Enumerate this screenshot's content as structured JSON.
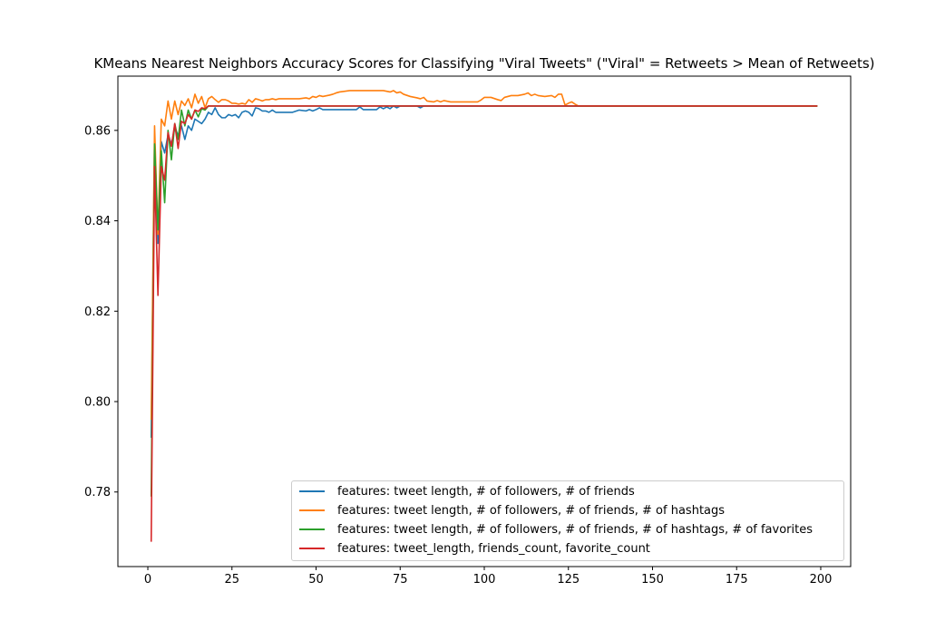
{
  "chart_data": {
    "type": "line",
    "title": "KMeans Nearest Neighbors Accuracy Scores for Classifying \"Viral Tweets\" (\"Viral\" = Retweets > Mean of Retweets)",
    "xlabel": "",
    "ylabel": "",
    "xlim": [
      -8.9,
      208.9
    ],
    "ylim": [
      0.7635,
      0.872
    ],
    "xticks": [
      0,
      25,
      50,
      75,
      100,
      125,
      150,
      175,
      200
    ],
    "yticks": [
      0.78,
      0.8,
      0.82,
      0.84,
      0.86
    ],
    "ytick_labels": [
      "0.78",
      "0.80",
      "0.82",
      "0.84",
      "0.86"
    ],
    "grid": false,
    "legend_position": "lower right",
    "series": [
      {
        "name": "features: tweet length, # of followers, # of friends",
        "color": "#1f77b4",
        "points": [
          [
            1,
            0.792
          ],
          [
            2,
            0.8585
          ],
          [
            3,
            0.835
          ],
          [
            4,
            0.8575
          ],
          [
            5,
            0.855
          ],
          [
            6,
            0.859
          ],
          [
            7,
            0.857
          ],
          [
            8,
            0.8605
          ],
          [
            9,
            0.859
          ],
          [
            10,
            0.861
          ],
          [
            11,
            0.858
          ],
          [
            12,
            0.861
          ],
          [
            13,
            0.86
          ],
          [
            14,
            0.8625
          ],
          [
            15,
            0.862
          ],
          [
            16,
            0.8615
          ],
          [
            17,
            0.8625
          ],
          [
            18,
            0.864
          ],
          [
            19,
            0.8635
          ],
          [
            20,
            0.865
          ],
          [
            21,
            0.8635
          ],
          [
            22,
            0.8628
          ],
          [
            23,
            0.8628
          ],
          [
            24,
            0.8635
          ],
          [
            25,
            0.8632
          ],
          [
            26,
            0.8635
          ],
          [
            27,
            0.8628
          ],
          [
            28,
            0.864
          ],
          [
            29,
            0.8643
          ],
          [
            30,
            0.864
          ],
          [
            31,
            0.8632
          ],
          [
            32,
            0.865
          ],
          [
            33,
            0.8648
          ],
          [
            34,
            0.8643
          ],
          [
            35,
            0.8643
          ],
          [
            36,
            0.864
          ],
          [
            37,
            0.8645
          ],
          [
            38,
            0.864
          ],
          [
            40,
            0.864
          ],
          [
            43,
            0.864
          ],
          [
            45,
            0.8645
          ],
          [
            47,
            0.8643
          ],
          [
            48,
            0.8646
          ],
          [
            49,
            0.8643
          ],
          [
            50,
            0.8646
          ],
          [
            51,
            0.865
          ],
          [
            52,
            0.8646
          ],
          [
            55,
            0.8646
          ],
          [
            60,
            0.8646
          ],
          [
            62,
            0.8646
          ],
          [
            63,
            0.8652
          ],
          [
            64,
            0.8646
          ],
          [
            68,
            0.8646
          ],
          [
            69,
            0.8652
          ],
          [
            70,
            0.8648
          ],
          [
            71,
            0.8652
          ],
          [
            72,
            0.8648
          ],
          [
            73,
            0.8654
          ],
          [
            74,
            0.865
          ],
          [
            75,
            0.8654
          ],
          [
            80,
            0.8654
          ],
          [
            81,
            0.865
          ],
          [
            82,
            0.8654
          ],
          [
            199,
            0.8654
          ]
        ]
      },
      {
        "name": "features: tweet length, # of followers, # of friends, # of hashtags",
        "color": "#ff7f0e",
        "points": [
          [
            1,
            0.796
          ],
          [
            2,
            0.861
          ],
          [
            3,
            0.837
          ],
          [
            4,
            0.8625
          ],
          [
            5,
            0.861
          ],
          [
            6,
            0.8665
          ],
          [
            7,
            0.8625
          ],
          [
            8,
            0.8665
          ],
          [
            9,
            0.8635
          ],
          [
            10,
            0.8665
          ],
          [
            11,
            0.8655
          ],
          [
            12,
            0.867
          ],
          [
            13,
            0.865
          ],
          [
            14,
            0.868
          ],
          [
            15,
            0.866
          ],
          [
            16,
            0.8675
          ],
          [
            17,
            0.865
          ],
          [
            18,
            0.867
          ],
          [
            19,
            0.8675
          ],
          [
            20,
            0.8668
          ],
          [
            21,
            0.8662
          ],
          [
            22,
            0.8668
          ],
          [
            23,
            0.8668
          ],
          [
            24,
            0.8665
          ],
          [
            25,
            0.866
          ],
          [
            26,
            0.866
          ],
          [
            27,
            0.8658
          ],
          [
            28,
            0.866
          ],
          [
            29,
            0.8658
          ],
          [
            30,
            0.8668
          ],
          [
            31,
            0.8662
          ],
          [
            32,
            0.867
          ],
          [
            33,
            0.8668
          ],
          [
            34,
            0.8665
          ],
          [
            35,
            0.8668
          ],
          [
            36,
            0.8668
          ],
          [
            37,
            0.867
          ],
          [
            38,
            0.8668
          ],
          [
            39,
            0.867
          ],
          [
            40,
            0.867
          ],
          [
            45,
            0.867
          ],
          [
            47,
            0.8672
          ],
          [
            48,
            0.867
          ],
          [
            49,
            0.8675
          ],
          [
            50,
            0.8673
          ],
          [
            51,
            0.8677
          ],
          [
            52,
            0.8675
          ],
          [
            54,
            0.8678
          ],
          [
            55,
            0.868
          ],
          [
            56,
            0.8683
          ],
          [
            57,
            0.8685
          ],
          [
            60,
            0.8688
          ],
          [
            65,
            0.8688
          ],
          [
            70,
            0.8688
          ],
          [
            72,
            0.8685
          ],
          [
            73,
            0.8688
          ],
          [
            74,
            0.8683
          ],
          [
            75,
            0.8685
          ],
          [
            76,
            0.868
          ],
          [
            78,
            0.8675
          ],
          [
            80,
            0.8672
          ],
          [
            81,
            0.867
          ],
          [
            82,
            0.8673
          ],
          [
            83,
            0.8665
          ],
          [
            85,
            0.8663
          ],
          [
            86,
            0.8666
          ],
          [
            87,
            0.8663
          ],
          [
            88,
            0.8666
          ],
          [
            90,
            0.8663
          ],
          [
            95,
            0.8663
          ],
          [
            98,
            0.8663
          ],
          [
            99,
            0.8667
          ],
          [
            100,
            0.8673
          ],
          [
            102,
            0.8673
          ],
          [
            104,
            0.8668
          ],
          [
            105,
            0.8666
          ],
          [
            106,
            0.8673
          ],
          [
            108,
            0.8677
          ],
          [
            110,
            0.8677
          ],
          [
            112,
            0.868
          ],
          [
            113,
            0.8683
          ],
          [
            114,
            0.8677
          ],
          [
            115,
            0.868
          ],
          [
            116,
            0.8677
          ],
          [
            118,
            0.8675
          ],
          [
            120,
            0.8677
          ],
          [
            121,
            0.8673
          ],
          [
            122,
            0.868
          ],
          [
            123,
            0.868
          ],
          [
            124,
            0.8656
          ],
          [
            125,
            0.866
          ],
          [
            126,
            0.8663
          ],
          [
            127,
            0.8658
          ],
          [
            128,
            0.8654
          ],
          [
            199,
            0.8654
          ]
        ]
      },
      {
        "name": "features: tweet length, # of followers, # of friends, # of hashtags, # of favorites",
        "color": "#2ca02c",
        "points": [
          [
            1,
            0.779
          ],
          [
            2,
            0.857
          ],
          [
            3,
            0.838
          ],
          [
            4,
            0.8555
          ],
          [
            5,
            0.844
          ],
          [
            6,
            0.86
          ],
          [
            7,
            0.8535
          ],
          [
            8,
            0.8615
          ],
          [
            9,
            0.858
          ],
          [
            10,
            0.8645
          ],
          [
            11,
            0.861
          ],
          [
            12,
            0.8645
          ],
          [
            13,
            0.8625
          ],
          [
            14,
            0.8645
          ],
          [
            15,
            0.863
          ],
          [
            16,
            0.8648
          ],
          [
            17,
            0.8645
          ],
          [
            18,
            0.8654
          ],
          [
            20,
            0.8654
          ],
          [
            199,
            0.8654
          ]
        ]
      },
      {
        "name": "features: tweet_length, friends_count, favorite_count",
        "color": "#d62728",
        "points": [
          [
            1,
            0.769
          ],
          [
            2,
            0.852
          ],
          [
            3,
            0.8235
          ],
          [
            4,
            0.852
          ],
          [
            5,
            0.849
          ],
          [
            6,
            0.8595
          ],
          [
            7,
            0.8565
          ],
          [
            8,
            0.8615
          ],
          [
            9,
            0.856
          ],
          [
            10,
            0.862
          ],
          [
            11,
            0.8615
          ],
          [
            12,
            0.8635
          ],
          [
            13,
            0.8625
          ],
          [
            14,
            0.8645
          ],
          [
            15,
            0.8642
          ],
          [
            16,
            0.865
          ],
          [
            17,
            0.8648
          ],
          [
            18,
            0.8654
          ],
          [
            20,
            0.8654
          ],
          [
            199,
            0.8654
          ]
        ]
      }
    ]
  }
}
